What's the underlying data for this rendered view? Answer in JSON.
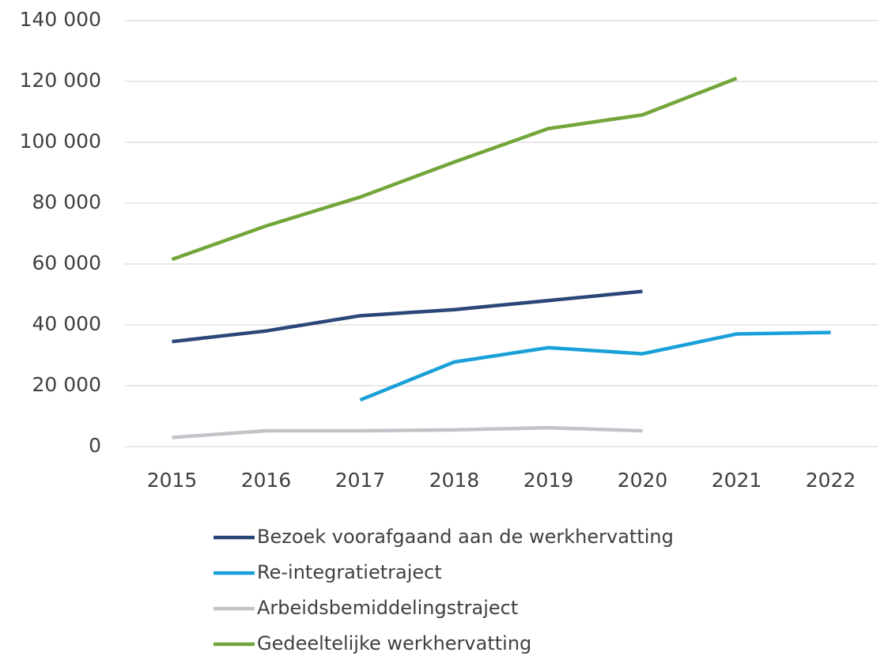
{
  "chart_data": {
    "type": "line",
    "categories": [
      "2015",
      "2016",
      "2017",
      "2018",
      "2019",
      "2020",
      "2021",
      "2022"
    ],
    "series": [
      {
        "name": "Bezoek voorafgaand aan de werkhervatting",
        "color": "#2a4778",
        "values": [
          34500,
          38000,
          43000,
          45000,
          48000,
          51000,
          null,
          null
        ]
      },
      {
        "name": "Re-integratietraject",
        "color": "#1aa0d8",
        "values": [
          null,
          null,
          15300,
          27800,
          32500,
          30500,
          37000,
          37500
        ]
      },
      {
        "name": "Arbeidsbemiddelingstraject",
        "color": "#c0c4c8",
        "values": [
          3000,
          5200,
          5200,
          5500,
          6200,
          5200,
          null,
          null
        ]
      },
      {
        "name": "Gedeeltelijke werkhervatting",
        "color": "#73a63a",
        "values": [
          61500,
          72500,
          82000,
          93500,
          104500,
          109000,
          121000,
          null
        ]
      }
    ],
    "ylim": [
      0,
      140000
    ],
    "yticks": [
      0,
      {
        "value": 20000,
        "label": "20 000"
      },
      {
        "value": 40000,
        "label": "40 000"
      },
      {
        "value": 60000,
        "label": "60 000"
      },
      {
        "value": 80000,
        "label": "80 000"
      },
      {
        "value": 100000,
        "label": "100 000"
      },
      {
        "value": 120000,
        "label": "120 000"
      },
      {
        "value": 140000,
        "label": "140 000"
      }
    ],
    "grid": true,
    "legend": "bottom"
  }
}
